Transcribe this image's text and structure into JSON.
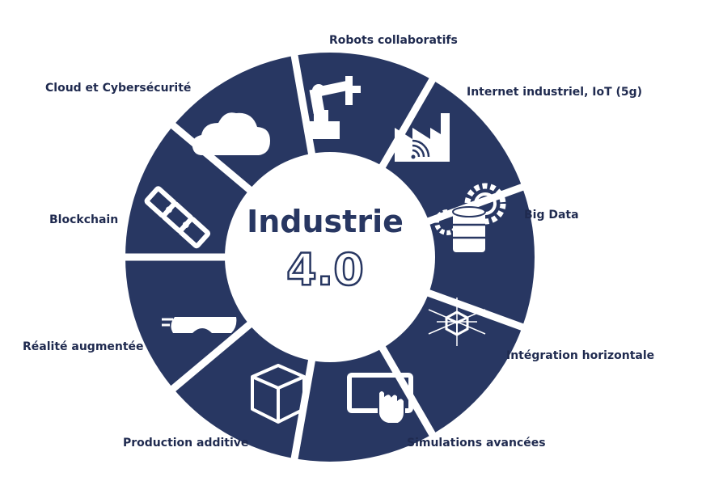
{
  "colors": {
    "navy": "#283762",
    "white": "#ffffff",
    "text": "#1f2a4f"
  },
  "center": {
    "title": "Industrie",
    "version": "4.0"
  },
  "segments": [
    {
      "label": "Robots collaboratifs",
      "icon": "robot-arm-icon"
    },
    {
      "label": "Internet industriel, IoT (5g)",
      "icon": "factory-wifi-icon"
    },
    {
      "label": "Big Data",
      "icon": "database-gears-icon"
    },
    {
      "label": "Intégration horizontale",
      "icon": "network-cube-icon"
    },
    {
      "label": "Simulations avancées",
      "icon": "touch-screen-icon"
    },
    {
      "label": "Production additive",
      "icon": "cube-icon"
    },
    {
      "label": "Réalité augmentée",
      "icon": "ar-glasses-icon"
    },
    {
      "label": "Blockchain",
      "icon": "chain-links-icon"
    },
    {
      "label": "Cloud et Cybersécurité",
      "icon": "cloud-icon"
    }
  ]
}
